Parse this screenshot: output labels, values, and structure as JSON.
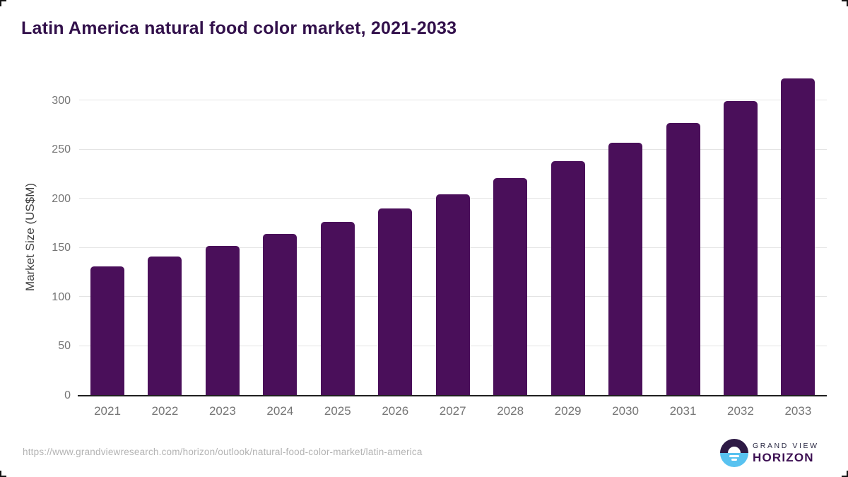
{
  "title": "Latin America natural food color market, 2021-2033",
  "chart_data": {
    "type": "bar",
    "categories": [
      "2021",
      "2022",
      "2023",
      "2024",
      "2025",
      "2026",
      "2027",
      "2028",
      "2029",
      "2030",
      "2031",
      "2032",
      "2033"
    ],
    "values": [
      131,
      141,
      152,
      164,
      176,
      190,
      204,
      221,
      238,
      257,
      277,
      299,
      322
    ],
    "title": "Latin America natural food color market, 2021-2033",
    "xlabel": "",
    "ylabel": "Market Size (US$M)",
    "ylim": [
      0,
      325
    ],
    "yticks": [
      0,
      50,
      100,
      150,
      200,
      250,
      300
    ],
    "grid": true,
    "legend": "none",
    "bar_corner_radius": "rounded-top"
  },
  "footer": {
    "source_url": "https://www.grandviewresearch.com/horizon/outlook/natural-food-color-market/latin-america",
    "brand": {
      "line1": "GRAND VIEW",
      "line2": "HORIZON"
    }
  },
  "colors": {
    "bar": "#4a0f5a",
    "title": "#32104b",
    "ylabel": "#404040",
    "tick": "#757575",
    "grid": "#e4e4e4",
    "axis": "#1f1f1f",
    "url": "#b3b3b3",
    "logo_purple": "#2e1a45",
    "logo_blue": "#58c2f0",
    "brand_top": "#2b2a44",
    "brand_bottom": "#3d1053"
  }
}
